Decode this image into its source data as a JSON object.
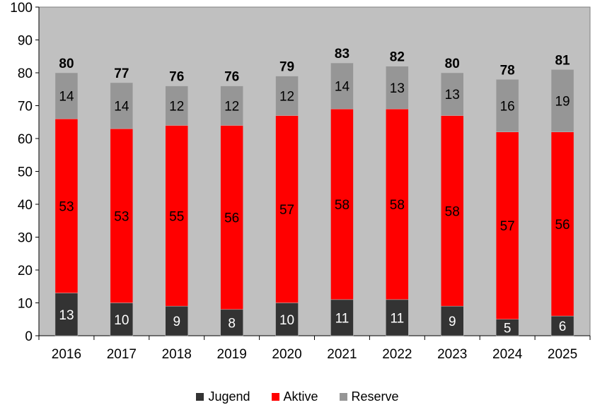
{
  "chart_data": {
    "type": "bar",
    "stacked": true,
    "categories": [
      "2016",
      "2017",
      "2018",
      "2019",
      "2020",
      "2021",
      "2022",
      "2023",
      "2024",
      "2025"
    ],
    "series": [
      {
        "name": "Jugend",
        "color": "#333333",
        "label_color": "#ffffff",
        "values": [
          13,
          10,
          9,
          8,
          10,
          11,
          11,
          9,
          5,
          6
        ]
      },
      {
        "name": "Aktive",
        "color": "#ff0000",
        "label_color": "#000000",
        "values": [
          53,
          53,
          55,
          56,
          57,
          58,
          58,
          58,
          57,
          56
        ]
      },
      {
        "name": "Reserve",
        "color": "#969696",
        "label_color": "#000000",
        "values": [
          14,
          14,
          12,
          12,
          12,
          14,
          13,
          13,
          16,
          19
        ]
      }
    ],
    "totals": [
      80,
      77,
      76,
      76,
      79,
      83,
      82,
      80,
      78,
      81
    ],
    "ylim": [
      0,
      100
    ],
    "yticks": [
      0,
      10,
      20,
      30,
      40,
      50,
      60,
      70,
      80,
      90,
      100
    ],
    "plot_background": "#c0c0c0",
    "grid": false,
    "legend_position": "bottom",
    "title": "",
    "xlabel": "",
    "ylabel": ""
  }
}
